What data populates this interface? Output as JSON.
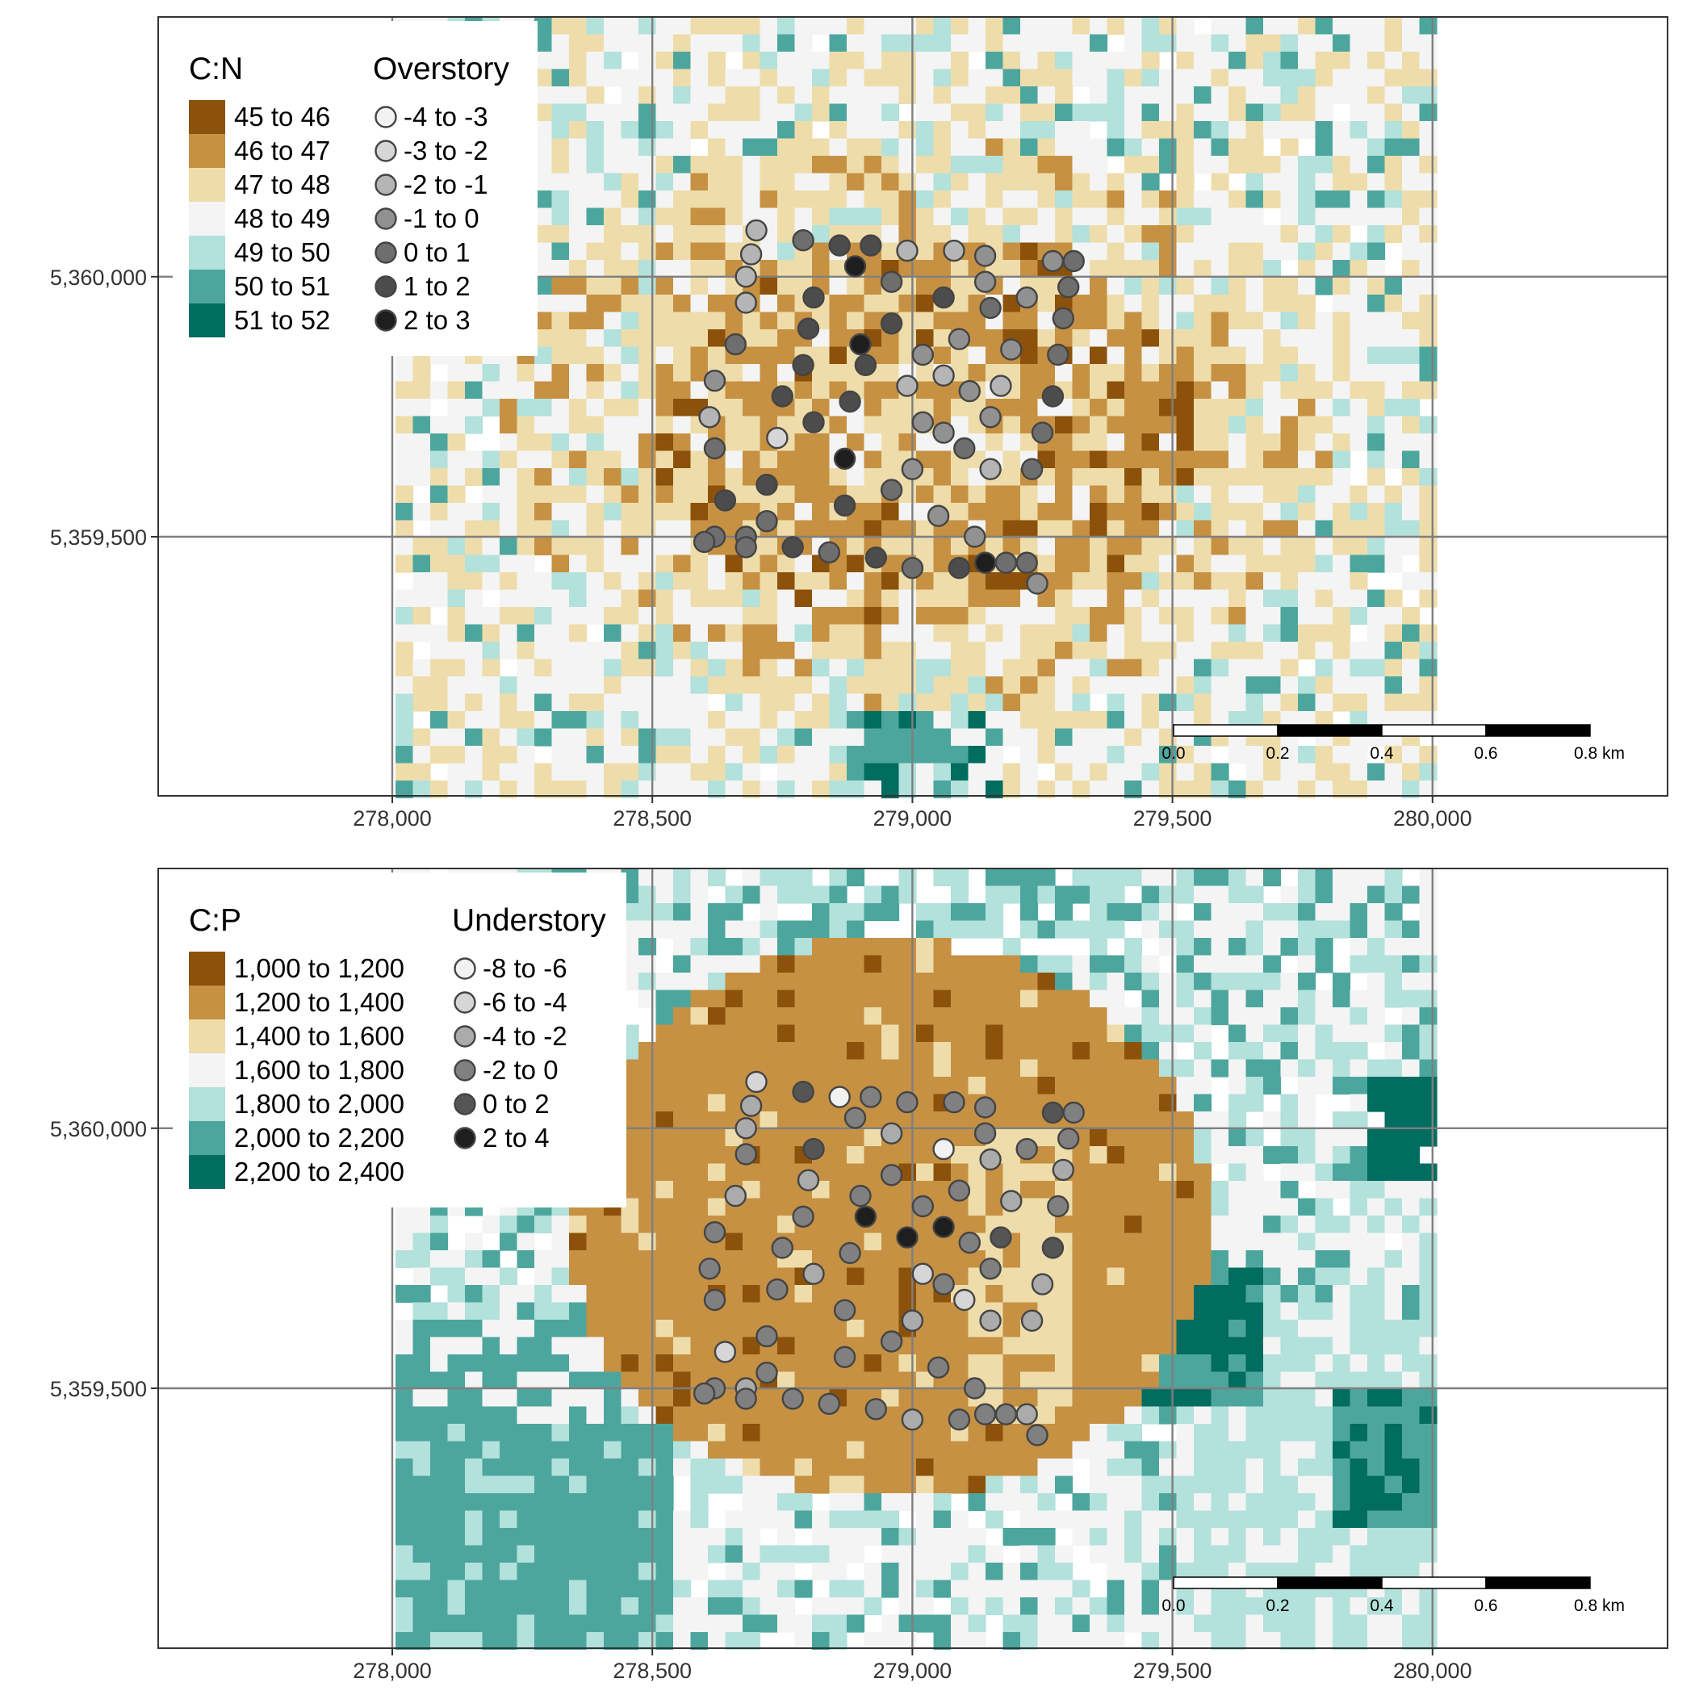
{
  "maps": [
    {
      "id": "cn",
      "raster_legend_title": "C:N",
      "raster_classes": [
        {
          "label": "45 to 46",
          "color": "#8C510A"
        },
        {
          "label": "46 to 47",
          "color": "#C69143"
        },
        {
          "label": "47 to 48",
          "color": "#EEDDAA"
        },
        {
          "label": "48 to 49",
          "color": "#F4F4F4"
        },
        {
          "label": "49 to 50",
          "color": "#B3E1DB"
        },
        {
          "label": "50 to 51",
          "color": "#4DA69E"
        },
        {
          "label": "51 to 52",
          "color": "#016C60"
        }
      ],
      "point_legend_title": "Overstory",
      "point_classes": [
        {
          "label": "-4 to -3",
          "color": "#F2F2F2"
        },
        {
          "label": "-3 to -2",
          "color": "#D6D6D6"
        },
        {
          "label": "-2 to -1",
          "color": "#B5B5B5"
        },
        {
          "label": "-1 to 0",
          "color": "#919191"
        },
        {
          "label": "0 to 1",
          "color": "#6E6E6E"
        },
        {
          "label": "1 to 2",
          "color": "#4C4C4C"
        },
        {
          "label": "2 to 3",
          "color": "#1E1E1E"
        }
      ],
      "points": [
        [
          278700,
          360089,
          2
        ],
        [
          278690,
          360043,
          2
        ],
        [
          278680,
          360000,
          2
        ],
        [
          278680,
          359950,
          2
        ],
        [
          278660,
          359870,
          4
        ],
        [
          278620,
          359800,
          3
        ],
        [
          278610,
          359730,
          2
        ],
        [
          278620,
          359670,
          4
        ],
        [
          278640,
          359570,
          5
        ],
        [
          278620,
          359500,
          4
        ],
        [
          278680,
          359500,
          4
        ],
        [
          278720,
          359530,
          4
        ],
        [
          278720,
          359600,
          5
        ],
        [
          278740,
          359690,
          1
        ],
        [
          278750,
          359770,
          5
        ],
        [
          278790,
          359830,
          5
        ],
        [
          278800,
          359900,
          5
        ],
        [
          278810,
          359960,
          5
        ],
        [
          278790,
          360070,
          4
        ],
        [
          278860,
          360060,
          5
        ],
        [
          278920,
          360060,
          5
        ],
        [
          278990,
          360050,
          2
        ],
        [
          279080,
          360050,
          2
        ],
        [
          279140,
          360040,
          3
        ],
        [
          279270,
          360030,
          3
        ],
        [
          279310,
          360030,
          4
        ],
        [
          279300,
          359980,
          4
        ],
        [
          279290,
          359920,
          4
        ],
        [
          279280,
          359850,
          4
        ],
        [
          279270,
          359770,
          5
        ],
        [
          279250,
          359700,
          4
        ],
        [
          279230,
          359630,
          4
        ],
        [
          279150,
          359630,
          2
        ],
        [
          279100,
          359670,
          4
        ],
        [
          279060,
          359700,
          3
        ],
        [
          279000,
          359630,
          3
        ],
        [
          278960,
          359590,
          4
        ],
        [
          278870,
          359560,
          5
        ],
        [
          278870,
          359650,
          6
        ],
        [
          278880,
          359760,
          5
        ],
        [
          278910,
          359830,
          5
        ],
        [
          278960,
          359910,
          5
        ],
        [
          278960,
          359990,
          4
        ],
        [
          278890,
          360020,
          6
        ],
        [
          279060,
          359960,
          5
        ],
        [
          279090,
          359880,
          3
        ],
        [
          279190,
          359860,
          3
        ],
        [
          279170,
          359790,
          2
        ],
        [
          279150,
          359730,
          3
        ],
        [
          279110,
          359780,
          3
        ],
        [
          279060,
          359810,
          2
        ],
        [
          279020,
          359850,
          3
        ],
        [
          278990,
          359790,
          2
        ],
        [
          278900,
          359870,
          6
        ],
        [
          279150,
          359940,
          4
        ],
        [
          279220,
          359960,
          3
        ],
        [
          279140,
          359990,
          3
        ],
        [
          279050,
          359540,
          3
        ],
        [
          279120,
          359500,
          3
        ],
        [
          279180,
          359450,
          4
        ],
        [
          279220,
          359450,
          4
        ],
        [
          279240,
          359410,
          3
        ],
        [
          279140,
          359450,
          6
        ],
        [
          279090,
          359440,
          5
        ],
        [
          279000,
          359440,
          4
        ],
        [
          278930,
          359460,
          5
        ],
        [
          278840,
          359470,
          4
        ],
        [
          278770,
          359480,
          5
        ],
        [
          278680,
          359480,
          4
        ],
        [
          278600,
          359490,
          4
        ],
        [
          278810,
          359720,
          5
        ],
        [
          279020,
          359720,
          3
        ]
      ]
    },
    {
      "id": "cp",
      "raster_legend_title": "C:P",
      "raster_classes": [
        {
          "label": "1,000 to 1,200",
          "color": "#8C510A"
        },
        {
          "label": "1,200 to 1,400",
          "color": "#C69143"
        },
        {
          "label": "1,400 to 1,600",
          "color": "#EEDDAA"
        },
        {
          "label": "1,600 to 1,800",
          "color": "#F4F4F4"
        },
        {
          "label": "1,800 to 2,000",
          "color": "#B3E1DB"
        },
        {
          "label": "2,000 to 2,200",
          "color": "#4DA69E"
        },
        {
          "label": "2,200 to 2,400",
          "color": "#016C60"
        }
      ],
      "point_legend_title": "Understory",
      "point_classes": [
        {
          "label": "-8 to -6",
          "color": "#F2F2F2"
        },
        {
          "label": "-6 to -4",
          "color": "#D6D6D6"
        },
        {
          "label": "-4 to -2",
          "color": "#ABABAB"
        },
        {
          "label": "-2 to 0",
          "color": "#808080"
        },
        {
          "label": "0 to 2",
          "color": "#555555"
        },
        {
          "label": "2 to 4",
          "color": "#1E1E1E"
        }
      ]
    }
  ],
  "x_ticks": [
    278000,
    278500,
    279000,
    279500,
    280000
  ],
  "x_tick_labels": [
    "278,000",
    "278,500",
    "279,000",
    "279,500",
    "280,000"
  ],
  "y_ticks": [
    5359500,
    5360000
  ],
  "y_tick_labels": [
    "5,359,500",
    "5,360,000"
  ],
  "scale_bar": {
    "labels": [
      "0.0",
      "0.2",
      "0.4",
      "0.6",
      "0.8 km"
    ]
  }
}
